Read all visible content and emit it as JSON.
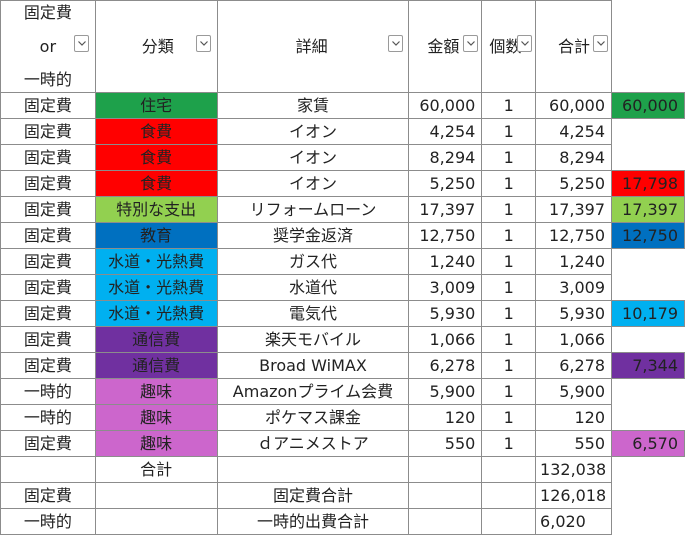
{
  "header": {
    "type_lines": [
      "固定費",
      "or",
      "一時的"
    ],
    "category": "分類",
    "detail": "詳細",
    "amount": "金額",
    "qty": "個数",
    "subtotal": "合計"
  },
  "rows": [
    {
      "type": "固定費",
      "category": "住宅",
      "cat_color": "#1ea14b",
      "detail": "家賃",
      "amount": "60,000",
      "qty": "1",
      "subtotal": "60,000",
      "side": "60,000",
      "side_color": "#1ea14b"
    },
    {
      "type": "固定費",
      "category": "食費",
      "cat_color": "#ff0000",
      "detail": "イオン",
      "amount": "4,254",
      "qty": "1",
      "subtotal": "4,254",
      "side": "",
      "side_color": ""
    },
    {
      "type": "固定費",
      "category": "食費",
      "cat_color": "#ff0000",
      "detail": "イオン",
      "amount": "8,294",
      "qty": "1",
      "subtotal": "8,294",
      "side": "",
      "side_color": ""
    },
    {
      "type": "固定費",
      "category": "食費",
      "cat_color": "#ff0000",
      "detail": "イオン",
      "amount": "5,250",
      "qty": "1",
      "subtotal": "5,250",
      "side": "17,798",
      "side_color": "#ff0000"
    },
    {
      "type": "固定費",
      "category": "特別な支出",
      "cat_color": "#92d050",
      "detail": "リフォームローン",
      "amount": "17,397",
      "qty": "1",
      "subtotal": "17,397",
      "side": "17,397",
      "side_color": "#92d050"
    },
    {
      "type": "固定費",
      "category": "教育",
      "cat_color": "#0070c0",
      "detail": "奨学金返済",
      "amount": "12,750",
      "qty": "1",
      "subtotal": "12,750",
      "side": "12,750",
      "side_color": "#0070c0"
    },
    {
      "type": "固定費",
      "category": "水道・光熱費",
      "cat_color": "#00b0f0",
      "detail": "ガス代",
      "amount": "1,240",
      "qty": "1",
      "subtotal": "1,240",
      "side": "",
      "side_color": ""
    },
    {
      "type": "固定費",
      "category": "水道・光熱費",
      "cat_color": "#00b0f0",
      "detail": "水道代",
      "amount": "3,009",
      "qty": "1",
      "subtotal": "3,009",
      "side": "",
      "side_color": ""
    },
    {
      "type": "固定費",
      "category": "水道・光熱費",
      "cat_color": "#00b0f0",
      "detail": "電気代",
      "amount": "5,930",
      "qty": "1",
      "subtotal": "5,930",
      "side": "10,179",
      "side_color": "#00b0f0"
    },
    {
      "type": "固定費",
      "category": "通信費",
      "cat_color": "#7030a0",
      "detail": "楽天モバイル",
      "amount": "1,066",
      "qty": "1",
      "subtotal": "1,066",
      "side": "",
      "side_color": ""
    },
    {
      "type": "固定費",
      "category": "通信費",
      "cat_color": "#7030a0",
      "detail": "Broad WiMAX",
      "amount": "6,278",
      "qty": "1",
      "subtotal": "6,278",
      "side": "7,344",
      "side_color": "#7030a0"
    },
    {
      "type": "一時的",
      "category": "趣味",
      "cat_color": "#cc66cc",
      "detail": "Amazonプライム会費",
      "amount": "5,900",
      "qty": "1",
      "subtotal": "5,900",
      "side": "",
      "side_color": ""
    },
    {
      "type": "一時的",
      "category": "趣味",
      "cat_color": "#cc66cc",
      "detail": "ポケマス課金",
      "amount": "120",
      "qty": "1",
      "subtotal": "120",
      "side": "",
      "side_color": ""
    },
    {
      "type": "固定費",
      "category": "趣味",
      "cat_color": "#cc66cc",
      "detail": "ｄアニメストア",
      "amount": "550",
      "qty": "1",
      "subtotal": "550",
      "side": "6,570",
      "side_color": "#cc66cc"
    }
  ],
  "totals": {
    "total_label": "合計",
    "total_value": "132,038",
    "fixed_type": "固定費",
    "fixed_label": "固定費合計",
    "fixed_value": "126,018",
    "temp_type": "一時的",
    "temp_label": "一時的出費合計",
    "temp_value": "6,020"
  },
  "icons": {
    "filter": "filter-dropdown-icon"
  }
}
